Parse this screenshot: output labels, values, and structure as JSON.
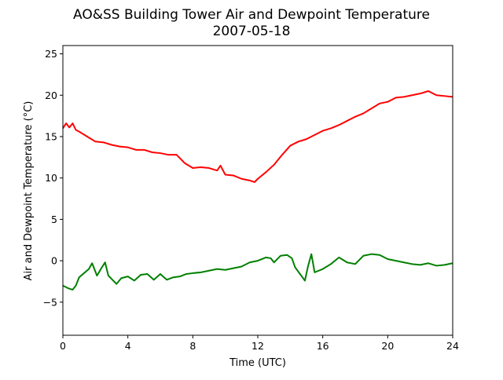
{
  "chart_data": {
    "type": "line",
    "title": "AO&SS Building Tower Air and Dewpoint Temperature",
    "subtitle": "2007-05-18",
    "xlabel": "Time (UTC)",
    "ylabel": "Air and Dewpoint Temperature (°C)",
    "xlim": [
      0,
      24
    ],
    "ylim": [
      -9,
      26
    ],
    "xticks": [
      0,
      4,
      8,
      12,
      16,
      20,
      24
    ],
    "xtick_labels": [
      "0",
      "4",
      "8",
      "12",
      "16",
      "20",
      "24"
    ],
    "yticks": [
      -5,
      0,
      5,
      10,
      15,
      20,
      25
    ],
    "ytick_labels": [
      "−5",
      "0",
      "5",
      "10",
      "15",
      "20",
      "25"
    ],
    "grid": false,
    "legend": "none",
    "series": [
      {
        "color": "#ff0000",
        "x": [
          0,
          0.2,
          0.4,
          0.6,
          0.8,
          1.0,
          1.5,
          2.0,
          2.5,
          3.0,
          3.5,
          4.0,
          4.5,
          5.0,
          5.5,
          6.0,
          6.5,
          7.0,
          7.5,
          8.0,
          8.5,
          9.0,
          9.5,
          9.7,
          10.0,
          10.5,
          11.0,
          11.5,
          11.8,
          12.0,
          12.5,
          13.0,
          13.5,
          14.0,
          14.5,
          15.0,
          15.5,
          16.0,
          16.5,
          17.0,
          17.5,
          18.0,
          18.5,
          19.0,
          19.5,
          20.0,
          20.5,
          21.0,
          21.5,
          22.0,
          22.5,
          23.0,
          23.5,
          24.0
        ],
        "values": [
          16.0,
          16.6,
          16.1,
          16.6,
          15.8,
          15.6,
          15.0,
          14.4,
          14.3,
          14.0,
          13.8,
          13.7,
          13.4,
          13.4,
          13.1,
          13.0,
          12.8,
          12.8,
          11.8,
          11.2,
          11.3,
          11.2,
          10.9,
          11.5,
          10.4,
          10.3,
          9.9,
          9.7,
          9.5,
          9.9,
          10.7,
          11.6,
          12.8,
          13.9,
          14.4,
          14.7,
          15.2,
          15.7,
          16.0,
          16.4,
          16.9,
          17.4,
          17.8,
          18.4,
          19.0,
          19.2,
          19.7,
          19.8,
          20.0,
          20.2,
          20.5,
          20.0,
          19.9,
          19.8
        ]
      },
      {
        "color": "#008000",
        "x": [
          0,
          0.3,
          0.6,
          0.8,
          1.0,
          1.3,
          1.6,
          1.8,
          2.1,
          2.4,
          2.6,
          2.8,
          3.0,
          3.3,
          3.6,
          4.0,
          4.4,
          4.8,
          5.2,
          5.6,
          6.0,
          6.4,
          6.8,
          7.2,
          7.6,
          8.0,
          8.5,
          9.0,
          9.5,
          10.0,
          10.5,
          11.0,
          11.5,
          12.0,
          12.5,
          12.8,
          13.0,
          13.4,
          13.8,
          14.1,
          14.3,
          14.6,
          14.9,
          15.1,
          15.3,
          15.5,
          16.0,
          16.5,
          17.0,
          17.5,
          18.0,
          18.5,
          19.0,
          19.5,
          20.0,
          20.5,
          21.0,
          21.5,
          22.0,
          22.5,
          23.0,
          23.5,
          24.0
        ],
        "values": [
          -3.0,
          -3.3,
          -3.5,
          -3.0,
          -2.0,
          -1.5,
          -1.0,
          -0.3,
          -1.8,
          -0.8,
          -0.2,
          -1.8,
          -2.2,
          -2.8,
          -2.1,
          -1.9,
          -2.4,
          -1.7,
          -1.6,
          -2.3,
          -1.6,
          -2.3,
          -2.0,
          -1.9,
          -1.6,
          -1.5,
          -1.4,
          -1.2,
          -1.0,
          -1.1,
          -0.9,
          -0.7,
          -0.2,
          0.0,
          0.4,
          0.3,
          -0.2,
          0.6,
          0.7,
          0.3,
          -0.8,
          -1.6,
          -2.4,
          -0.6,
          0.8,
          -1.4,
          -1.0,
          -0.4,
          0.4,
          -0.2,
          -0.4,
          0.6,
          0.8,
          0.7,
          0.2,
          0.0,
          -0.2,
          -0.4,
          -0.5,
          -0.3,
          -0.6,
          -0.5,
          -0.3
        ]
      }
    ]
  }
}
